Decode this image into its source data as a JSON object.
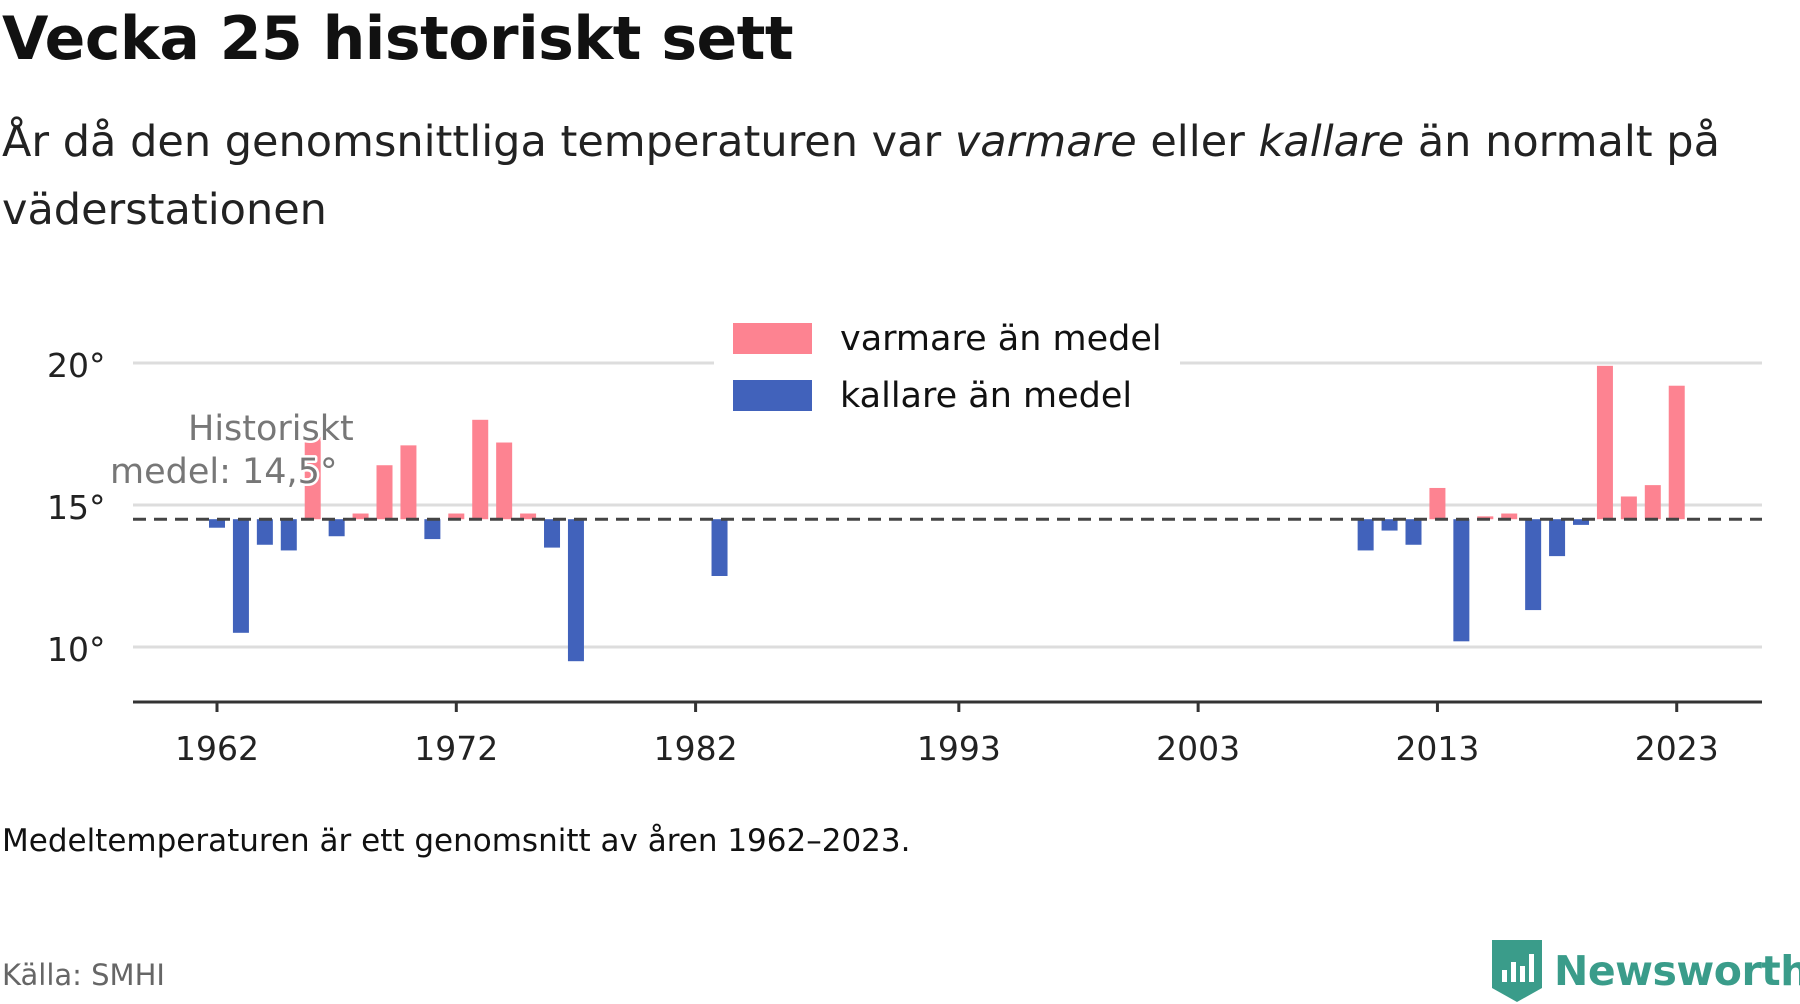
{
  "title": "Vecka 25 historiskt sett",
  "subtitle": {
    "part1": "År då den genomsnittliga temperaturen var ",
    "warm_word": "varmare",
    "part2": " eller ",
    "cold_word": "kallare",
    "part3": " än normalt på väderstationen"
  },
  "footnote": "Medeltemperaturen är ett genomsnitt av åren 1962–2023.",
  "source": "Källa: SMHI",
  "brand": "Newsworthy",
  "colors": {
    "warm": "#fd8391",
    "cold": "#4162bb",
    "grid": "#dddddd",
    "baseline": "#444444",
    "brand": "#3a9c8a",
    "text": "#222222",
    "muted": "#777777"
  },
  "chart_data": {
    "type": "bar",
    "baseline": 14.5,
    "baseline_label": [
      "Historiskt",
      "medel: 14,5°"
    ],
    "ylim": [
      9.5,
      20.5
    ],
    "yticks": [
      10,
      15,
      20
    ],
    "ytick_labels": [
      "10°",
      "15°",
      "20°"
    ],
    "xticks": [
      1962,
      1972,
      1982,
      1993,
      2003,
      2013,
      2023
    ],
    "xtick_labels": [
      "1962",
      "1972",
      "1982",
      "1993",
      "2003",
      "2013",
      "2023"
    ],
    "legend": {
      "position": "top-center",
      "warm_label": "varmare än medel",
      "cold_label": "kallare än medel"
    },
    "x": [
      1962,
      1963,
      1964,
      1965,
      1966,
      1967,
      1968,
      1969,
      1970,
      1971,
      1972,
      1973,
      1974,
      1975,
      1976,
      1977,
      1983,
      2010,
      2011,
      2012,
      2013,
      2014,
      2015,
      2016,
      2017,
      2018,
      2019,
      2020,
      2021,
      2022,
      2023
    ],
    "values": [
      14.2,
      10.5,
      13.6,
      13.4,
      17.4,
      13.9,
      14.7,
      16.4,
      17.1,
      13.8,
      14.7,
      18.0,
      17.2,
      14.7,
      13.5,
      9.5,
      12.5,
      13.4,
      14.1,
      13.6,
      15.6,
      10.2,
      14.6,
      14.7,
      11.3,
      13.2,
      14.3,
      19.9,
      15.3,
      15.7,
      19.2
    ]
  }
}
